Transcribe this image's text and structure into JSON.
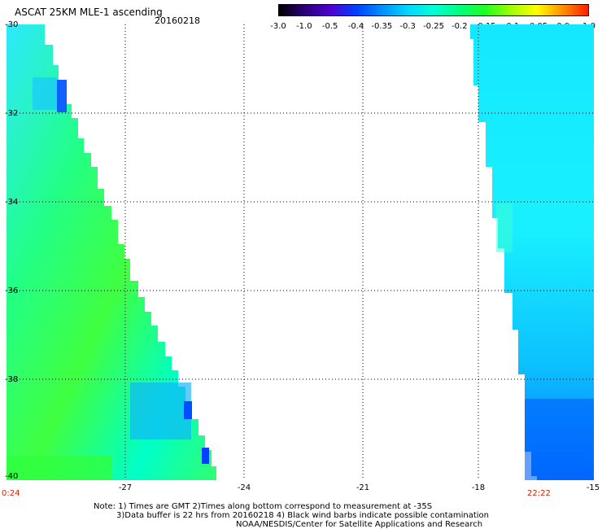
{
  "header": {
    "title": "ASCAT 25KM MLE-1 ascending",
    "date": "20160218"
  },
  "colorbar": {
    "ticks": [
      "-3.0",
      "-1.0",
      "-0.5",
      "-0.4",
      "-0.35",
      "-0.3",
      "-0.25",
      "-0.2",
      "-0.15",
      "-0.1",
      "-0.05",
      "0.0",
      "1.0"
    ],
    "colors": [
      "#000000",
      "#2a007a",
      "#5000d0",
      "#0040ff",
      "#0090ff",
      "#00d8ff",
      "#00ffd8",
      "#00ff80",
      "#20ff20",
      "#a0ff00",
      "#ffff00",
      "#ff9000",
      "#ff2000"
    ]
  },
  "axes": {
    "y_labels": [
      "-30",
      "-32",
      "-34",
      "-36",
      "-38",
      "-40"
    ],
    "x_labels": [
      "-27",
      "-24",
      "-21",
      "-18",
      "-15"
    ],
    "time_left": "0:24",
    "time_right": "22:22"
  },
  "footer": {
    "note1": "Note: 1) Times are GMT 2)Times along bottom correspond to measurement at -35S",
    "note2": "3)Data buffer is 22 hrs from 20160218 4) Black wind barbs indicate possible contamination",
    "note3": "NOAA/NESDIS/Center for Satellite Applications and Research"
  }
}
